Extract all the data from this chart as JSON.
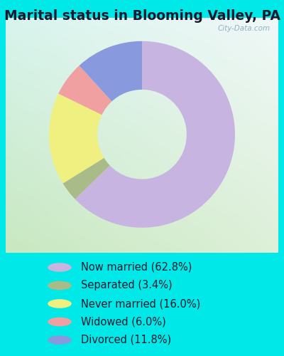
{
  "title": "Marital status in Blooming Valley, PA",
  "slices": [
    62.8,
    3.4,
    16.0,
    6.0,
    11.8
  ],
  "labels": [
    "Now married (62.8%)",
    "Separated (3.4%)",
    "Never married (16.0%)",
    "Widowed (6.0%)",
    "Divorced (11.8%)"
  ],
  "colors": [
    "#c8b4e0",
    "#a8bb88",
    "#f0f080",
    "#f0a0a0",
    "#8899dd"
  ],
  "bg_cyan": "#00e8e8",
  "chart_bg_tl": "#e8f8f4",
  "chart_bg_br": "#d0e8cc",
  "title_color": "#1a1a2e",
  "watermark": "City-Data.com",
  "legend_fontsize": 10.5,
  "title_fontsize": 13.5,
  "donut_width": 0.52
}
